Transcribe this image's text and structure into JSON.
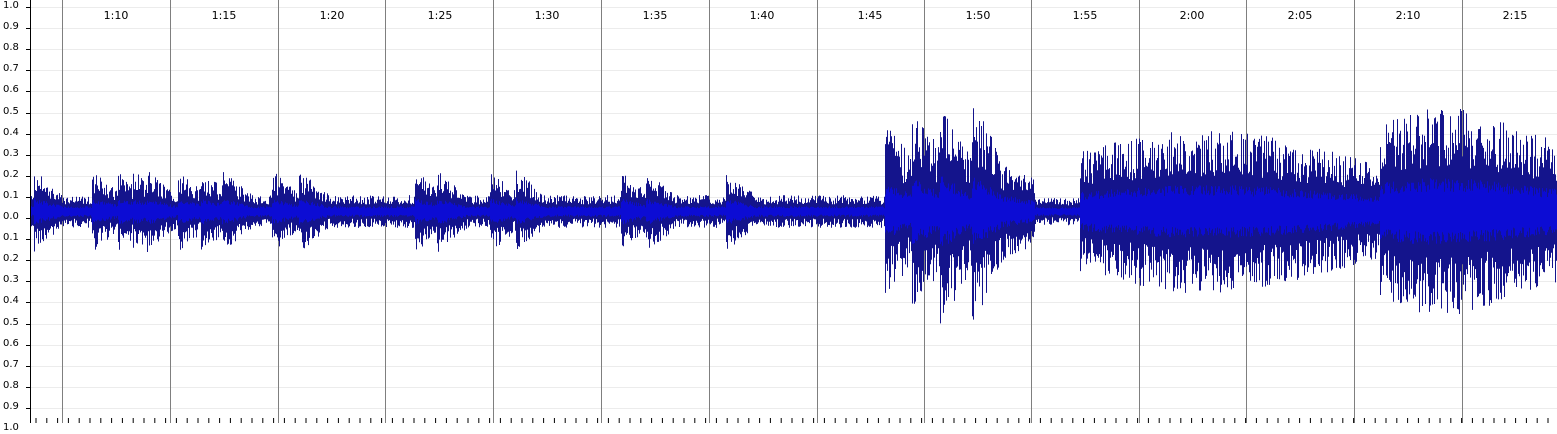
{
  "waveform": {
    "amplitude_labels": [
      "1.0",
      "0.9",
      "0.8",
      "0.7",
      "0.6",
      "0.5",
      "0.4",
      "0.3",
      "0.2",
      "0.1",
      "0.0",
      "0.1",
      "0.2",
      "0.3",
      "0.4",
      "0.5",
      "0.6",
      "0.7",
      "0.8",
      "0.9",
      "1.0"
    ],
    "time_labels": [
      "1:10",
      "1:15",
      "1:20",
      "1:25",
      "1:30",
      "1:35",
      "1:40",
      "1:45",
      "1:50",
      "1:55",
      "2:00",
      "2:05",
      "2:10",
      "2:15"
    ],
    "colors": {
      "background": "#ffffff",
      "grid_minor": "#ececec",
      "grid_major": "#7f7f7f",
      "wave_peak": "#14148c",
      "wave_rms": "#0c0cd4",
      "axis": "#000000"
    }
  }
}
